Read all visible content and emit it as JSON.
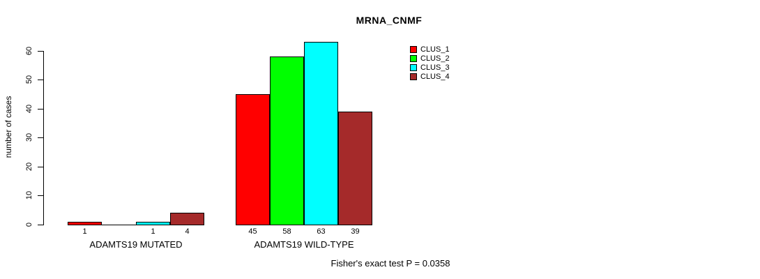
{
  "chart_data": {
    "type": "bar",
    "title": "MRNA_CNMF",
    "xlabel": "",
    "ylabel": "number of cases",
    "categories": [
      "ADAMTS19 MUTATED",
      "ADAMTS19 WILD-TYPE"
    ],
    "series": [
      {
        "name": "CLUS_1",
        "color": "#ff0000",
        "values": [
          1,
          45
        ]
      },
      {
        "name": "CLUS_2",
        "color": "#00ff00",
        "values": [
          0,
          58
        ]
      },
      {
        "name": "CLUS_3",
        "color": "#00ffff",
        "values": [
          1,
          63
        ]
      },
      {
        "name": "CLUS_4",
        "color": "#a52a2a",
        "values": [
          4,
          39
        ]
      }
    ],
    "bar_value_labels": [
      [
        "1",
        "",
        "1",
        "4"
      ],
      [
        "45",
        "58",
        "63",
        "39"
      ]
    ],
    "yticks": [
      0,
      10,
      20,
      30,
      40,
      50,
      60
    ],
    "ylim": [
      0,
      63
    ],
    "grid": false,
    "legend": {
      "position": "top-right",
      "entries": [
        "CLUS_1",
        "CLUS_2",
        "CLUS_3",
        "CLUS_4"
      ]
    },
    "annotation": "Fisher's exact test P = 0.0358"
  }
}
